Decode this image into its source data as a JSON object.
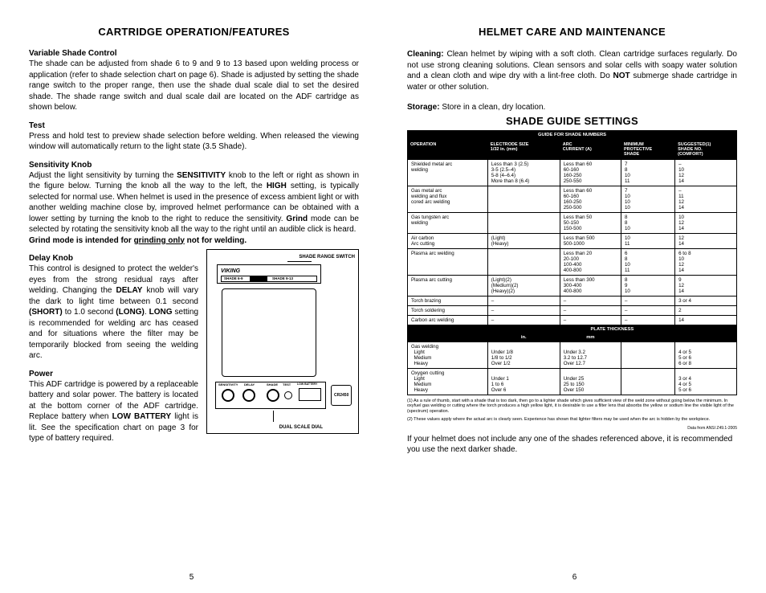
{
  "left": {
    "title": "CARTRIDGE OPERATION/FEATURES",
    "sections": {
      "variable_shade": {
        "heading": "Variable Shade Control",
        "body": "The shade can be adjusted from shade 6 to 9 and 9 to 13 based upon welding process or application (refer to shade selection chart on page 6). Shade is adjusted by setting the shade range switch to the proper range, then use the shade dual scale dial to set the desired shade. The shade range switch and dual scale dail are located on the ADF cartridge as shown below."
      },
      "test": {
        "heading": "Test",
        "body": "Press and hold test to preview shade selection before welding. When released the viewing window will automatically return to the light state (3.5 Shade)."
      },
      "sensitivity": {
        "heading": "Sensitivity Knob",
        "body_parts": [
          "Adjust the light sensitivity by turning the ",
          "SENSITIVITY",
          " knob to the left or right as shown in the figure below.  Turning the knob all the way to the left, the ",
          "HIGH",
          " setting, is typically selected for normal use.  When helmet is used in the presence of excess ambient light or with another welding machine close by, improved helmet performance can be obtained with a lower setting by turning the knob to the right to reduce the sensitivity. ",
          "Grind",
          " mode can be selected by rotating the sensitivity knob all the way to the right until an audible click is heard."
        ],
        "grind_line_parts": [
          "Grind mode is intended for ",
          "grinding only",
          " not for welding."
        ]
      },
      "delay": {
        "heading": "Delay Knob",
        "body_parts": [
          "This control is designed to protect the welder's eyes from the strong residual rays after welding. Changing the ",
          "DELAY",
          " knob will vary the dark to light time between 0.1 second ",
          "(SHORT)",
          " to 1.0 second ",
          "(LONG)",
          ". ",
          "LONG",
          " setting is recommended for welding arc has ceased and for situations where the filter may be temporarily blocked from seeing the welding arc."
        ]
      },
      "power": {
        "heading": "Power",
        "body_parts": [
          "This ADF cartridge is powered by a replaceable battery and solar power. The battery is located at the bottom corner of the ADF cartridge. Replace battery when ",
          "LOW BATTERY",
          " light is lit. See the specification chart on page 3 for type of battery required."
        ]
      }
    },
    "diagram": {
      "labels": {
        "shade_range_switch": "SHADE RANGE SWITCH",
        "dual_scale_dial": "DUAL SCALE DIAL",
        "brand": "VIKING",
        "shade_a": "SHADE 6-9",
        "shade_b": "SHADE 9-13",
        "sensitivity": "SENSITIVITY",
        "delay": "DELAY",
        "test": "TEST",
        "low_batt": "LOW BATTERY",
        "shade": "SHADE",
        "cr2450": "CR2450"
      }
    },
    "page_num": "5"
  },
  "right": {
    "title": "HELMET CARE AND MAINTENANCE",
    "cleaning_label": "Cleaning:",
    "cleaning_body_parts": [
      "  Clean helmet by wiping with a soft cloth. Clean cartridge surfaces regularly. Do not use strong cleaning solutions. Clean sensors and solar cells with soapy water solution and a clean cloth and wipe dry with a lint-free cloth. Do ",
      "NOT",
      " submerge shade cartridge in water or other solution."
    ],
    "storage_label": "Storage:",
    "storage_body": "  Store in a clean, dry location.",
    "shade_title": "SHADE GUIDE SETTINGS",
    "table": {
      "banner": "GUIDE FOR SHADE NUMBERS",
      "headers": [
        "OPERATION",
        "ELECTRODE SIZE\n1/32 in. (mm)",
        "ARC\nCURRENT (A)",
        "MINIMUM\nPROTECTIVE\nSHADE",
        "SUGGESTED(1)\nSHADE NO.\n(COMFORT)"
      ],
      "rows": [
        {
          "sep": true,
          "cells": [
            "Shielded metal arc\nwelding",
            "Less than 3 (2.5)\n3-5 (2.5–4)\n5-8 (4–6.4)\nMore than 8 (6.4)",
            "Less than 60\n60-160\n160-250\n250-550",
            "7\n8\n10\n11",
            "–\n10\n12\n14"
          ]
        },
        {
          "sep": true,
          "cells": [
            "Gas metal arc\nwelding and flux\ncored arc welding",
            "",
            "Less than 60\n60-160\n160-250\n250-500",
            "7\n10\n10\n10",
            "–\n11\n12\n14"
          ]
        },
        {
          "sep": true,
          "cells": [
            "Gas tungsten arc\nwelding",
            "",
            "Less than 50\n50-150\n150-500",
            "8\n8\n10",
            "10\n12\n14"
          ]
        },
        {
          "sep": true,
          "cells": [
            "Air carbon\nArc cutting",
            "(Light)\n(Heavy)",
            "Less than 500\n500-1000",
            "10\n11",
            "12\n14"
          ]
        },
        {
          "sep": true,
          "cells": [
            "Plasma arc welding",
            "",
            "Less than 20\n20-100\n100-400\n400-800",
            "6\n8\n10\n11",
            "6 to 8\n10\n12\n14"
          ]
        },
        {
          "sep": true,
          "cells": [
            "Plasma arc cutting",
            "(Light)(2)\n(Medium)(2)\n(Heavy)(2)",
            "Less than 300\n300-400\n400-800",
            "8\n9\n10",
            "9\n12\n14"
          ]
        },
        {
          "sep": true,
          "cells": [
            "Torch brazing",
            "–",
            "–",
            "–",
            "3 or 4"
          ]
        },
        {
          "sep": true,
          "cells": [
            "Torch soldering",
            "–",
            "–",
            "–",
            "2"
          ]
        },
        {
          "sep": true,
          "cells": [
            "Carbon arc welding",
            "–",
            "–",
            "–",
            "14"
          ]
        }
      ],
      "plate_header": [
        "PLATE THICKNESS"
      ],
      "plate_sub": [
        "",
        "in.",
        "mm",
        "",
        ""
      ],
      "plate_rows": [
        {
          "sep": true,
          "cells": [
            "Gas welding\n  Light\n  Medium\n  Heavy",
            "\nUnder 1/8\n1/8 to 1/2\nOver 1/2",
            "\nUnder 3.2\n3.2 to 12.7\nOver 12.7",
            "",
            "\n4 or 5\n5 or 6\n6 or 8"
          ]
        },
        {
          "sep": true,
          "cells": [
            "Oxygen cutting\n  Light\n  Medium\n  Heavy",
            "\nUnder 1\n1 to 6\nOver 6",
            "\nUnder 25\n25 to 150\nOver 150",
            "",
            "\n3 or 4\n4 or 5\n5 or 6"
          ]
        }
      ]
    },
    "footnotes": [
      "(1)  As  a rule of thumb, start with a shade that is too dark, then go to a lighter shade which gives sufficient view of the weld zone without going below the minimum. In oxyfuel gas welding or cutting where the torch produces a high yellow light, it is desirable to use a filter lens that absorbs the yellow or sodium line the visible light of the (spectrum) operation.",
      "(2)  These values apply where the actual arc is clearly seen. Experience has shown that lighter filters may be used when the arc is hidden by the workpiece."
    ],
    "footnote_source": "Data from ANSI Z49.1-2005",
    "closing": "If your helmet does not include any one of the shades referenced above, it is recommended you use the next darker shade.",
    "page_num": "6"
  }
}
